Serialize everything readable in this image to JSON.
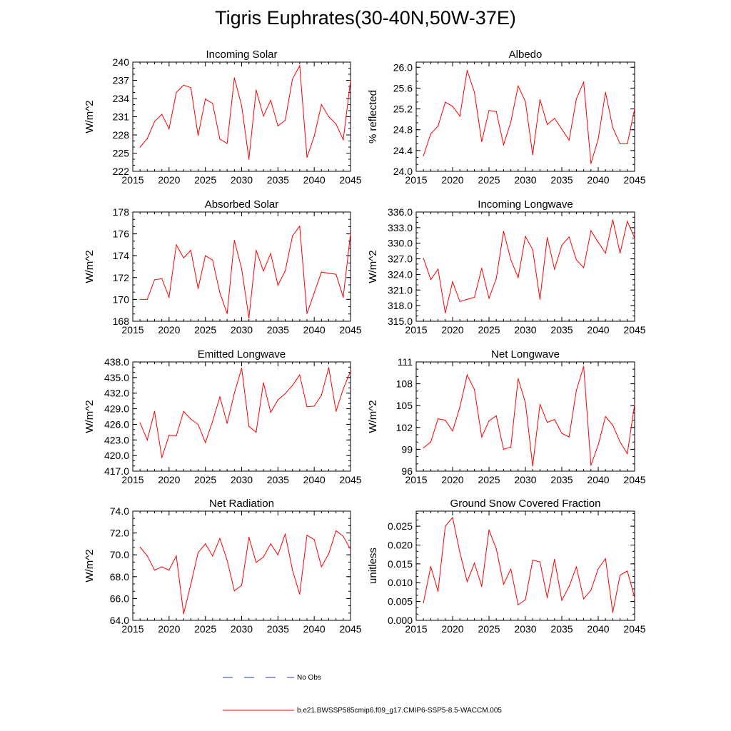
{
  "title": "Tigris Euphrates(30-40N,50W-37E)",
  "legend": [
    {
      "label": "No Obs",
      "color": "#1f3fa0",
      "dash": "dashed"
    },
    {
      "label": "b.e21.BWSSP585cmip6.f09_g17.CMIP6-SSP5-8.5-WACCM.005",
      "color": "#ff0000",
      "dash": "solid"
    }
  ],
  "chart_data": [
    {
      "type": "line",
      "title": "Incoming Solar",
      "ylabel": "W/m^2",
      "xlim": [
        2015,
        2045
      ],
      "ylim": [
        222,
        240
      ],
      "yticks": [
        "222",
        "225",
        "228",
        "231",
        "234",
        "237",
        "240"
      ],
      "xticks": [
        "2015",
        "2020",
        "2025",
        "2030",
        "2035",
        "2040",
        "2045"
      ],
      "x": [
        2016,
        2017,
        2018,
        2019,
        2020,
        2021,
        2022,
        2023,
        2024,
        2025,
        2026,
        2027,
        2028,
        2029,
        2030,
        2031,
        2032,
        2033,
        2034,
        2035,
        2036,
        2037,
        2038,
        2039,
        2040,
        2041,
        2042,
        2043,
        2044,
        2045
      ],
      "values": [
        226.0,
        227.4,
        230.2,
        231.4,
        229.0,
        235.0,
        236.2,
        235.8,
        227.9,
        233.9,
        233.2,
        227.3,
        226.6,
        237.4,
        232.8,
        224.0,
        235.4,
        231.1,
        233.7,
        229.5,
        230.4,
        237.2,
        239.4,
        224.3,
        227.8,
        233.0,
        231.0,
        229.8,
        227.2,
        236.9
      ],
      "series_color": "#ff0000"
    },
    {
      "type": "line",
      "title": "Albedo",
      "ylabel": "% reflected",
      "xlim": [
        2015,
        2045
      ],
      "ylim": [
        24.0,
        26.1
      ],
      "yticks": [
        "24.0",
        "24.4",
        "24.8",
        "25.2",
        "25.6",
        "26.0"
      ],
      "xticks": [
        "2015",
        "2020",
        "2025",
        "2030",
        "2035",
        "2040",
        "2045"
      ],
      "x": [
        2016,
        2017,
        2018,
        2019,
        2020,
        2021,
        2022,
        2023,
        2024,
        2025,
        2026,
        2027,
        2028,
        2029,
        2030,
        2031,
        2032,
        2033,
        2034,
        2035,
        2036,
        2037,
        2038,
        2039,
        2040,
        2041,
        2042,
        2043,
        2044,
        2045
      ],
      "values": [
        24.3,
        24.72,
        24.87,
        25.33,
        25.25,
        25.06,
        25.94,
        25.52,
        24.57,
        25.17,
        25.15,
        24.51,
        24.95,
        25.64,
        25.34,
        24.32,
        25.38,
        24.9,
        25.02,
        24.81,
        24.6,
        25.39,
        25.72,
        24.15,
        24.62,
        25.52,
        24.84,
        24.53,
        24.53,
        25.2
      ],
      "series_color": "#ff0000"
    },
    {
      "type": "line",
      "title": "Absorbed Solar",
      "ylabel": "W/m^2",
      "xlim": [
        2015,
        2045
      ],
      "ylim": [
        168,
        178
      ],
      "yticks": [
        "168",
        "170",
        "172",
        "174",
        "176",
        "178"
      ],
      "xticks": [
        "2015",
        "2020",
        "2025",
        "2030",
        "2035",
        "2040",
        "2045"
      ],
      "x": [
        2016,
        2017,
        2018,
        2019,
        2020,
        2021,
        2022,
        2023,
        2024,
        2025,
        2026,
        2027,
        2028,
        2029,
        2030,
        2031,
        2032,
        2033,
        2034,
        2035,
        2036,
        2037,
        2038,
        2039,
        2040,
        2041,
        2042,
        2043,
        2044,
        2045
      ],
      "values": [
        170.0,
        170.0,
        171.8,
        171.9,
        170.2,
        175.0,
        173.8,
        174.5,
        171.0,
        174.0,
        173.6,
        170.6,
        168.7,
        175.4,
        172.8,
        168.3,
        174.5,
        172.6,
        174.2,
        171.3,
        172.6,
        175.8,
        176.7,
        168.7,
        170.6,
        172.5,
        172.4,
        172.3,
        170.2,
        176.0
      ],
      "series_color": "#ff0000"
    },
    {
      "type": "line",
      "title": "Incoming Longwave",
      "ylabel": "W/m^2",
      "xlim": [
        2015,
        2045
      ],
      "ylim": [
        315.0,
        336.0
      ],
      "yticks": [
        "315.0",
        "318.0",
        "321.0",
        "324.0",
        "327.0",
        "330.0",
        "333.0",
        "336.0"
      ],
      "xticks": [
        "2015",
        "2020",
        "2025",
        "2030",
        "2035",
        "2040",
        "2045"
      ],
      "x": [
        2016,
        2017,
        2018,
        2019,
        2020,
        2021,
        2022,
        2023,
        2024,
        2025,
        2026,
        2027,
        2028,
        2029,
        2030,
        2031,
        2032,
        2033,
        2034,
        2035,
        2036,
        2037,
        2038,
        2039,
        2040,
        2041,
        2042,
        2043,
        2044,
        2045
      ],
      "values": [
        327.1,
        323.0,
        325.0,
        316.6,
        322.6,
        318.8,
        319.2,
        319.6,
        325.2,
        319.4,
        323.2,
        332.3,
        326.8,
        323.4,
        331.3,
        328.8,
        319.2,
        331.1,
        325.0,
        329.6,
        331.2,
        326.8,
        325.3,
        332.4,
        330.2,
        328.1,
        334.5,
        328.1,
        334.2,
        331.0
      ],
      "series_color": "#ff0000"
    },
    {
      "type": "line",
      "title": "Emitted Longwave",
      "ylabel": "W/m^2",
      "xlim": [
        2015,
        2045
      ],
      "ylim": [
        417.0,
        438.0
      ],
      "yticks": [
        "417.0",
        "420.0",
        "423.0",
        "426.0",
        "429.0",
        "432.0",
        "435.0",
        "438.0"
      ],
      "xticks": [
        "2015",
        "2020",
        "2025",
        "2030",
        "2035",
        "2040",
        "2045"
      ],
      "x": [
        2016,
        2017,
        2018,
        2019,
        2020,
        2021,
        2022,
        2023,
        2024,
        2025,
        2026,
        2027,
        2028,
        2029,
        2030,
        2031,
        2032,
        2033,
        2034,
        2035,
        2036,
        2037,
        2038,
        2039,
        2040,
        2041,
        2042,
        2043,
        2044,
        2045
      ],
      "values": [
        426.3,
        423.0,
        428.5,
        419.6,
        423.9,
        423.8,
        428.5,
        427.0,
        426.0,
        422.5,
        426.6,
        431.3,
        426.2,
        432.0,
        436.8,
        425.6,
        424.5,
        434.0,
        428.3,
        430.7,
        431.9,
        433.5,
        435.5,
        429.4,
        429.5,
        431.6,
        436.9,
        428.5,
        432.8,
        436.2
      ],
      "series_color": "#ff0000"
    },
    {
      "type": "line",
      "title": "Net Longwave",
      "ylabel": "W/m^2",
      "xlim": [
        2015,
        2045
      ],
      "ylim": [
        96,
        111
      ],
      "yticks": [
        "96",
        "99",
        "102",
        "105",
        "108",
        "111"
      ],
      "xticks": [
        "2015",
        "2020",
        "2025",
        "2030",
        "2035",
        "2040",
        "2045"
      ],
      "x": [
        2016,
        2017,
        2018,
        2019,
        2020,
        2021,
        2022,
        2023,
        2024,
        2025,
        2026,
        2027,
        2028,
        2029,
        2030,
        2031,
        2032,
        2033,
        2034,
        2035,
        2036,
        2037,
        2038,
        2039,
        2040,
        2041,
        2042,
        2043,
        2044,
        2045
      ],
      "values": [
        99.2,
        100.0,
        103.2,
        103.0,
        101.5,
        104.8,
        109.2,
        107.2,
        100.7,
        102.9,
        103.6,
        99.0,
        99.3,
        108.7,
        105.4,
        96.7,
        105.2,
        102.7,
        103.1,
        101.2,
        100.7,
        107.1,
        110.4,
        96.8,
        99.6,
        103.5,
        102.3,
        100.0,
        98.4,
        105.2
      ],
      "series_color": "#ff0000"
    },
    {
      "type": "line",
      "title": "Net Radiation",
      "ylabel": "W/m^2",
      "xlim": [
        2015,
        2045
      ],
      "ylim": [
        64.0,
        74.0
      ],
      "yticks": [
        "64.0",
        "66.0",
        "68.0",
        "70.0",
        "72.0",
        "74.0"
      ],
      "xticks": [
        "2015",
        "2020",
        "2025",
        "2030",
        "2035",
        "2040",
        "2045"
      ],
      "x": [
        2016,
        2017,
        2018,
        2019,
        2020,
        2021,
        2022,
        2023,
        2024,
        2025,
        2026,
        2027,
        2028,
        2029,
        2030,
        2031,
        2032,
        2033,
        2034,
        2035,
        2036,
        2037,
        2038,
        2039,
        2040,
        2041,
        2042,
        2043,
        2044,
        2045
      ],
      "values": [
        70.7,
        69.9,
        68.6,
        68.9,
        68.6,
        69.9,
        64.6,
        67.3,
        70.2,
        71.0,
        69.9,
        71.5,
        69.5,
        66.7,
        67.2,
        71.6,
        69.3,
        69.8,
        71.0,
        70.0,
        71.9,
        68.6,
        66.4,
        71.8,
        71.4,
        68.9,
        70.1,
        72.2,
        71.7,
        70.5
      ],
      "series_color": "#ff0000"
    },
    {
      "type": "line",
      "title": "Ground Snow Covered Fraction",
      "ylabel": "unitless",
      "xlim": [
        2015,
        2045
      ],
      "ylim": [
        0.0,
        0.029
      ],
      "yticks": [
        "0.000",
        "0.005",
        "0.010",
        "0.015",
        "0.020",
        "0.025"
      ],
      "xticks": [
        "2015",
        "2020",
        "2025",
        "2030",
        "2035",
        "2040",
        "2045"
      ],
      "x": [
        2016,
        2017,
        2018,
        2019,
        2020,
        2021,
        2022,
        2023,
        2024,
        2025,
        2026,
        2027,
        2028,
        2029,
        2030,
        2031,
        2032,
        2033,
        2034,
        2035,
        2036,
        2037,
        2038,
        2039,
        2040,
        2041,
        2042,
        2043,
        2044,
        2045
      ],
      "values": [
        0.0047,
        0.0143,
        0.0077,
        0.025,
        0.0273,
        0.018,
        0.0103,
        0.0152,
        0.009,
        0.024,
        0.019,
        0.0096,
        0.0136,
        0.0041,
        0.0055,
        0.016,
        0.0155,
        0.006,
        0.0162,
        0.0053,
        0.009,
        0.0142,
        0.0057,
        0.008,
        0.0137,
        0.0164,
        0.0021,
        0.012,
        0.0131,
        0.006
      ],
      "series_color": "#ff0000"
    }
  ]
}
